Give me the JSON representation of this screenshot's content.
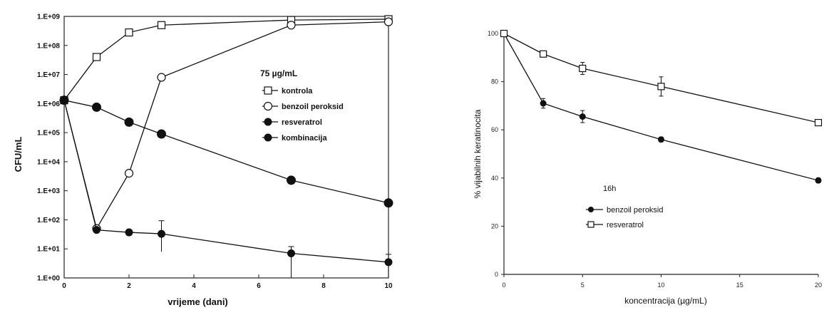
{
  "chart_data": [
    {
      "type": "line",
      "xlabel": "vrijeme (dani)",
      "ylabel": "CFU/mL",
      "yscale": "log",
      "xlim": [
        0,
        10
      ],
      "ylim": [
        1,
        1000000000
      ],
      "xticks": [
        "0",
        "2",
        "4",
        "6",
        "8",
        "10"
      ],
      "yticks": [
        "1.E+00",
        "1.E+01",
        "1.E+02",
        "1.E+03",
        "1.E+04",
        "1.E+05",
        "1.E+06",
        "1.E+07",
        "1.E+08",
        "1.E+09"
      ],
      "legend_title": "75 µg/mL",
      "legend_position": "center-right",
      "grid": false,
      "series": [
        {
          "name": "kontrola",
          "marker": "open-square",
          "x": [
            0,
            1,
            2,
            3,
            7,
            10
          ],
          "y": [
            1300000,
            40000000,
            280000000,
            500000000,
            750000000,
            800000000
          ]
        },
        {
          "name": "benzoil peroksid",
          "marker": "open-circle",
          "x": [
            0,
            1,
            2,
            3,
            7,
            10
          ],
          "y": [
            1300000,
            50,
            4000,
            8000000,
            500000000,
            650000000
          ]
        },
        {
          "name": "resveratrol",
          "marker": "filled-circle",
          "x": [
            0,
            1,
            2,
            3,
            7,
            10
          ],
          "y": [
            1300000,
            750000,
            230000,
            90000,
            2300,
            380
          ]
        },
        {
          "name": "kombinacija",
          "marker": "filled-circle-small",
          "x": [
            0,
            1,
            2,
            3,
            7,
            10
          ],
          "y": [
            1300000,
            45,
            37,
            33,
            7,
            3.5
          ],
          "err_up": [
            0,
            0,
            0,
            60,
            5,
            3
          ],
          "err_down": [
            0,
            0,
            0,
            25,
            6,
            2.5
          ]
        }
      ]
    },
    {
      "type": "line",
      "xlabel": "koncentracija (µg/mL)",
      "ylabel": "% vijabilnih keratinocita",
      "xlim": [
        0,
        20
      ],
      "ylim": [
        0,
        100
      ],
      "xticks": [
        "0",
        "5",
        "10",
        "15",
        "20"
      ],
      "yticks": [
        "0",
        "20",
        "40",
        "60",
        "80",
        "100"
      ],
      "legend_title": "16h",
      "legend_position": "lower-left",
      "grid": false,
      "series": [
        {
          "name": "benzoil peroksid",
          "marker": "filled-circle",
          "x": [
            0,
            2.5,
            5,
            10,
            20
          ],
          "y": [
            100,
            71,
            65.5,
            56,
            39
          ],
          "err": [
            0,
            2,
            2.5,
            1,
            1
          ]
        },
        {
          "name": "resveratrol",
          "marker": "open-square",
          "x": [
            0,
            2.5,
            5,
            10,
            20
          ],
          "y": [
            100,
            91.5,
            85.5,
            78,
            63
          ],
          "err": [
            0,
            1,
            2.5,
            4,
            1
          ]
        }
      ]
    }
  ]
}
